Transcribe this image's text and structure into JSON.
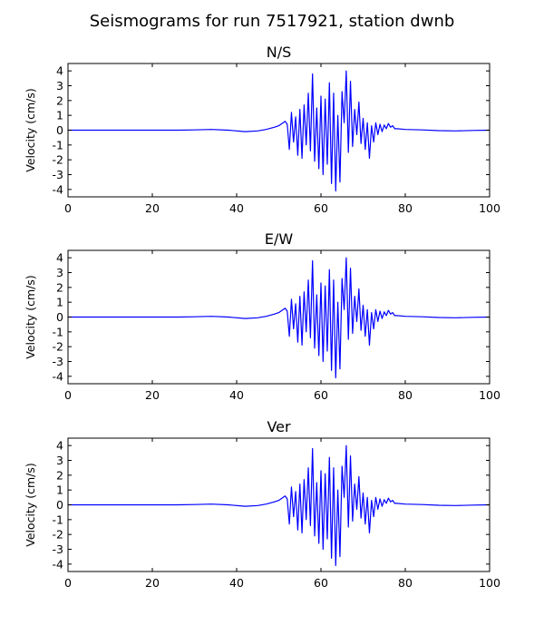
{
  "figure": {
    "title": "Seismograms for run 7517921, station dwnb"
  },
  "chart_data": [
    {
      "type": "line",
      "title": "N/S",
      "xlabel": "",
      "ylabel": "Velocity (cm/s)",
      "xlim": [
        0,
        100
      ],
      "ylim": [
        -4.5,
        4.5
      ],
      "xticks": [
        0,
        20,
        40,
        60,
        80,
        100
      ],
      "yticks": [
        -4,
        -3,
        -2,
        -1,
        0,
        1,
        2,
        3,
        4
      ],
      "color": "#0000ff",
      "grid": false,
      "x": [
        0,
        10,
        20,
        26,
        30,
        34,
        38,
        42,
        45,
        47,
        49,
        50,
        51,
        51.5,
        52,
        52.5,
        53,
        53.5,
        54,
        54.5,
        55,
        55.5,
        56,
        56.5,
        57,
        57.5,
        58,
        58.5,
        59,
        59.5,
        60,
        60.5,
        61,
        61.5,
        62,
        62.5,
        63,
        63.5,
        64,
        64.5,
        65,
        65.5,
        66,
        66.5,
        67,
        67.5,
        68,
        68.5,
        69,
        69.5,
        70,
        70.5,
        71,
        71.5,
        72,
        72.5,
        73,
        73.5,
        74,
        74.5,
        75,
        75.5,
        76,
        76.5,
        77,
        77.5,
        78,
        80,
        84,
        88,
        92,
        96,
        100
      ],
      "values": [
        0,
        0,
        0,
        0,
        0.02,
        0.05,
        0.0,
        -0.1,
        -0.05,
        0.05,
        0.2,
        0.3,
        0.5,
        0.6,
        0.4,
        -1.3,
        1.2,
        -0.8,
        0.9,
        -1.7,
        1.4,
        -1.9,
        1.7,
        -1.0,
        2.5,
        -1.4,
        3.8,
        -2.1,
        1.5,
        -2.6,
        2.3,
        -3.0,
        2.1,
        -2.3,
        3.2,
        -3.6,
        2.5,
        -4.1,
        1.0,
        -3.5,
        2.6,
        0.5,
        4.0,
        -1.5,
        3.3,
        -1.1,
        1.4,
        -0.3,
        1.9,
        -0.9,
        0.8,
        -1.3,
        0.5,
        -1.9,
        0.3,
        -0.8,
        0.5,
        -0.3,
        0.4,
        -0.1,
        0.35,
        0.1,
        0.45,
        0.2,
        0.3,
        0.1,
        0.1,
        0.05,
        0.02,
        -0.03,
        -0.05,
        -0.02,
        0
      ]
    },
    {
      "type": "line",
      "title": "E/W",
      "xlabel": "",
      "ylabel": "Velocity (cm/s)",
      "xlim": [
        0,
        100
      ],
      "ylim": [
        -4.5,
        4.5
      ],
      "xticks": [
        0,
        20,
        40,
        60,
        80,
        100
      ],
      "yticks": [
        -4,
        -3,
        -2,
        -1,
        0,
        1,
        2,
        3,
        4
      ],
      "color": "#0000ff",
      "grid": false,
      "x": [
        0,
        10,
        20,
        26,
        30,
        34,
        38,
        42,
        45,
        47,
        49,
        50,
        51,
        51.5,
        52,
        52.5,
        53,
        53.5,
        54,
        54.5,
        55,
        55.5,
        56,
        56.5,
        57,
        57.5,
        58,
        58.5,
        59,
        59.5,
        60,
        60.5,
        61,
        61.5,
        62,
        62.5,
        63,
        63.5,
        64,
        64.5,
        65,
        65.5,
        66,
        66.5,
        67,
        67.5,
        68,
        68.5,
        69,
        69.5,
        70,
        70.5,
        71,
        71.5,
        72,
        72.5,
        73,
        73.5,
        74,
        74.5,
        75,
        75.5,
        76,
        76.5,
        77,
        77.5,
        78,
        80,
        84,
        88,
        92,
        96,
        100
      ],
      "values": [
        0,
        0,
        0,
        0,
        0.02,
        0.05,
        0.0,
        -0.1,
        -0.05,
        0.05,
        0.2,
        0.3,
        0.5,
        0.6,
        0.4,
        -1.3,
        1.2,
        -0.8,
        0.9,
        -1.7,
        1.4,
        -1.9,
        1.7,
        -1.0,
        2.5,
        -1.4,
        3.8,
        -2.1,
        1.5,
        -2.6,
        2.3,
        -3.0,
        2.1,
        -2.3,
        3.2,
        -3.6,
        2.5,
        -4.1,
        1.0,
        -3.5,
        2.6,
        0.5,
        4.0,
        -1.5,
        3.3,
        -1.1,
        1.4,
        -0.3,
        1.9,
        -0.9,
        0.8,
        -1.3,
        0.5,
        -1.9,
        0.3,
        -0.8,
        0.5,
        -0.3,
        0.4,
        -0.1,
        0.35,
        0.1,
        0.45,
        0.2,
        0.3,
        0.1,
        0.1,
        0.05,
        0.02,
        -0.03,
        -0.05,
        -0.02,
        0
      ]
    },
    {
      "type": "line",
      "title": "Ver",
      "xlabel": "",
      "ylabel": "Velocity (cm/s)",
      "xlim": [
        0,
        100
      ],
      "ylim": [
        -4.5,
        4.5
      ],
      "xticks": [
        0,
        20,
        40,
        60,
        80,
        100
      ],
      "yticks": [
        -4,
        -3,
        -2,
        -1,
        0,
        1,
        2,
        3,
        4
      ],
      "color": "#0000ff",
      "grid": false,
      "x": [
        0,
        10,
        20,
        26,
        30,
        34,
        38,
        42,
        45,
        47,
        49,
        50,
        51,
        51.5,
        52,
        52.5,
        53,
        53.5,
        54,
        54.5,
        55,
        55.5,
        56,
        56.5,
        57,
        57.5,
        58,
        58.5,
        59,
        59.5,
        60,
        60.5,
        61,
        61.5,
        62,
        62.5,
        63,
        63.5,
        64,
        64.5,
        65,
        65.5,
        66,
        66.5,
        67,
        67.5,
        68,
        68.5,
        69,
        69.5,
        70,
        70.5,
        71,
        71.5,
        72,
        72.5,
        73,
        73.5,
        74,
        74.5,
        75,
        75.5,
        76,
        76.5,
        77,
        77.5,
        78,
        80,
        84,
        88,
        92,
        96,
        100
      ],
      "values": [
        0,
        0,
        0,
        0,
        0.02,
        0.05,
        0.0,
        -0.1,
        -0.05,
        0.05,
        0.2,
        0.3,
        0.5,
        0.6,
        0.4,
        -1.3,
        1.2,
        -0.8,
        0.9,
        -1.7,
        1.4,
        -1.9,
        1.7,
        -1.0,
        2.5,
        -1.4,
        3.8,
        -2.1,
        1.5,
        -2.6,
        2.3,
        -3.0,
        2.1,
        -2.3,
        3.2,
        -3.6,
        2.5,
        -4.1,
        1.0,
        -3.5,
        2.6,
        0.5,
        4.0,
        -1.5,
        3.3,
        -1.1,
        1.4,
        -0.3,
        1.9,
        -0.9,
        0.8,
        -1.3,
        0.5,
        -1.9,
        0.3,
        -0.8,
        0.5,
        -0.3,
        0.4,
        -0.1,
        0.35,
        0.1,
        0.45,
        0.2,
        0.3,
        0.1,
        0.1,
        0.05,
        0.02,
        -0.03,
        -0.05,
        -0.02,
        0
      ]
    }
  ]
}
